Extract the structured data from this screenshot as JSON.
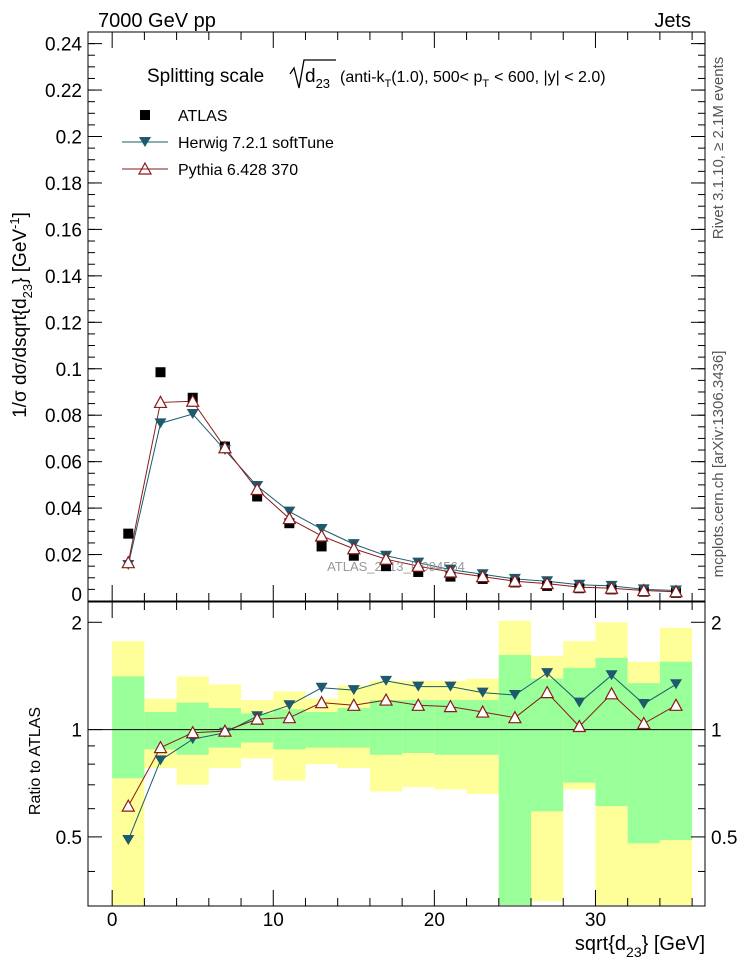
{
  "header": {
    "left": "7000 GeV pp",
    "right": "Jets"
  },
  "side_labels": {
    "rivet": "Rivet 3.1.10, ≥ 2.1M events",
    "mcplots": "mcplots.cern.ch [arXiv:1306.3436]"
  },
  "chart_data": {
    "type": "scatter",
    "title_parts": {
      "prefix": "Splitting scale",
      "d": "d",
      "d_sub": "23",
      "mid1": "(anti-k",
      "k_sub": "T",
      "mid2": "(1.0), 500< p",
      "p_sub": "T",
      "suffix": "< 600, |y| < 2.0)"
    },
    "watermark": "ATLAS_2013_I1094564",
    "main_panel": {
      "ylabel_parts": {
        "pre": "1/σ dσ/dsqrt{d",
        "sub": "23",
        "mid": "} [GeV",
        "sup": "-1",
        "end": "]"
      },
      "ylim": [
        0,
        0.245
      ],
      "y_ticks": [
        0,
        0.02,
        0.04,
        0.06,
        0.08,
        0.1,
        0.12,
        0.14,
        0.16,
        0.18,
        0.2,
        0.22,
        0.24
      ],
      "y_tick_labels": [
        "0",
        "0.02",
        "0.04",
        "0.06",
        "0.08",
        "0.1",
        "0.12",
        "0.14",
        "0.16",
        "0.18",
        "0.2",
        "0.22",
        "0.24"
      ]
    },
    "ratio_panel": {
      "ylabel": "Ratio to ATLAS",
      "ylim": [
        0.32,
        2.28
      ],
      "y_ticks": [
        0.5,
        1,
        2
      ],
      "y_tick_labels": [
        "0.5",
        "1",
        "2"
      ],
      "band_outer": [
        [
          0.3,
          1.77
        ],
        [
          0.78,
          1.22
        ],
        [
          0.7,
          1.41
        ],
        [
          0.78,
          1.34
        ],
        [
          0.83,
          1.21
        ],
        [
          0.72,
          1.28
        ],
        [
          0.8,
          1.22
        ],
        [
          0.78,
          1.33
        ],
        [
          0.67,
          1.37
        ],
        [
          0.69,
          1.37
        ],
        [
          0.68,
          1.37
        ],
        [
          0.66,
          1.39
        ],
        [
          0.3,
          2.02
        ],
        [
          0.33,
          1.61
        ],
        [
          0.68,
          1.77
        ],
        [
          0.3,
          2.0
        ],
        [
          0.3,
          1.55
        ],
        [
          0.3,
          1.93
        ],
        [
          0.3,
          2.22
        ]
      ],
      "band_inner": [
        [
          0.73,
          1.41
        ],
        [
          0.88,
          1.12
        ],
        [
          0.85,
          1.19
        ],
        [
          0.89,
          1.15
        ],
        [
          0.92,
          1.11
        ],
        [
          0.88,
          1.14
        ],
        [
          0.89,
          1.12
        ],
        [
          0.89,
          1.15
        ],
        [
          0.85,
          1.21
        ],
        [
          0.86,
          1.21
        ],
        [
          0.85,
          1.21
        ],
        [
          0.85,
          1.21
        ],
        [
          0.3,
          1.62
        ],
        [
          0.59,
          1.39
        ],
        [
          0.71,
          1.49
        ],
        [
          0.61,
          1.59
        ],
        [
          0.48,
          1.35
        ],
        [
          0.49,
          1.55
        ],
        [
          0.4,
          1.75
        ]
      ]
    },
    "x": [
      1,
      3,
      5,
      7,
      9,
      11,
      13,
      15,
      17,
      19,
      21,
      23,
      25,
      27,
      29,
      31,
      33,
      35
    ],
    "bin_edges": [
      0,
      2,
      4,
      6,
      8,
      10,
      12,
      14,
      16,
      18,
      20,
      22,
      24,
      26,
      28,
      30,
      32,
      34,
      36
    ],
    "xlim": [
      -1.5,
      36.8
    ],
    "x_ticks": [
      0,
      10,
      20,
      30
    ],
    "x_tick_labels": [
      "0",
      "10",
      "20",
      "30"
    ],
    "xlabel_parts": {
      "pre": "sqrt{d",
      "sub": "23",
      "post": "} [GeV]"
    },
    "series": [
      {
        "name": "ATLAS",
        "marker": "square",
        "color": "#000000",
        "values": [
          0.029,
          0.0985,
          0.0875,
          0.0665,
          0.045,
          0.0335,
          0.0235,
          0.0195,
          0.015,
          0.0125,
          0.0105,
          0.0095,
          0.008,
          0.0065,
          0.0055,
          0.005,
          0.004,
          0.0035
        ]
      },
      {
        "name": "Herwig 7.2.1 softTune",
        "marker": "triangle-down",
        "color": "#1e5a6e",
        "values": [
          0.0155,
          0.0765,
          0.0805,
          0.065,
          0.0495,
          0.0385,
          0.031,
          0.0245,
          0.0195,
          0.0165,
          0.0135,
          0.0115,
          0.0095,
          0.0085,
          0.007,
          0.0065,
          0.005,
          0.0045
        ],
        "ratio": [
          0.49,
          0.82,
          0.94,
          0.98,
          1.09,
          1.17,
          1.31,
          1.29,
          1.37,
          1.32,
          1.32,
          1.27,
          1.25,
          1.44,
          1.19,
          1.42,
          1.18,
          1.34
        ]
      },
      {
        "name": "Pythia 6.428 370",
        "marker": "triangle-up",
        "color": "#8b1a1a",
        "values": [
          0.0165,
          0.0855,
          0.086,
          0.066,
          0.048,
          0.0355,
          0.028,
          0.0225,
          0.018,
          0.015,
          0.0125,
          0.0105,
          0.0085,
          0.0075,
          0.006,
          0.0055,
          0.0045,
          0.004
        ],
        "ratio": [
          0.61,
          0.89,
          0.98,
          0.99,
          1.07,
          1.08,
          1.19,
          1.17,
          1.21,
          1.17,
          1.16,
          1.12,
          1.08,
          1.27,
          1.02,
          1.26,
          1.04,
          1.17
        ]
      }
    ],
    "colors": {
      "band_outer": "#ffff99",
      "band_inner": "#99ff99",
      "ratio_line": "#000000"
    }
  }
}
